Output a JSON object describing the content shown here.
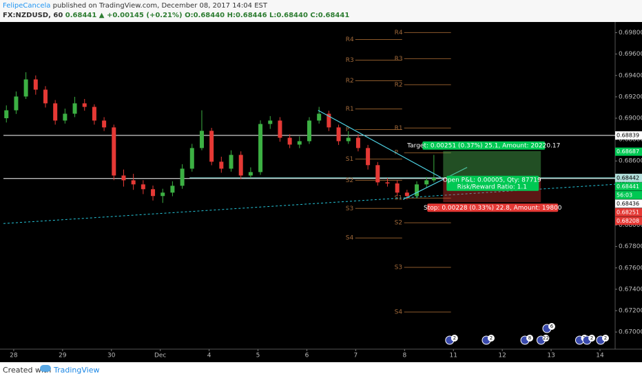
{
  "header": {
    "author": "FelipeCancela",
    "published": " published on TradingView.com, December 08, 2017 14:04 EST",
    "symbol": "FX:NZDUSD, 60",
    "last": "0.68441",
    "change": "▲ +0.00145 (+0.21%)",
    "ohlc": "O:0.68440 H:0.68446 L:0.68440 C:0.68441"
  },
  "chart_data": {
    "type": "candlestick",
    "up_color": "#3cb043",
    "down_color": "#e53935",
    "x": [
      -0.15,
      0.05,
      0.25,
      0.45,
      0.65,
      0.85,
      1.05,
      1.25,
      1.45,
      1.65,
      1.85,
      2.05,
      2.25,
      2.45,
      2.65,
      2.85,
      3.05,
      3.25,
      3.45,
      3.65,
      3.85,
      4.05,
      4.25,
      4.45,
      4.65,
      4.85,
      5.05,
      5.25,
      5.45,
      5.65,
      5.85,
      6.05,
      6.25,
      6.45,
      6.65,
      6.85,
      7.05,
      7.25,
      7.45,
      7.65,
      7.85,
      8.05,
      8.25,
      8.45,
      8.6
    ],
    "open": [
      0.69,
      0.69074,
      0.69203,
      0.69363,
      0.69267,
      0.69139,
      0.68978,
      0.69042,
      0.69139,
      0.69106,
      0.68978,
      0.68914,
      0.68464,
      0.68419,
      0.68381,
      0.68336,
      0.68272,
      0.68304,
      0.68368,
      0.68528,
      0.68721,
      0.68882,
      0.68593,
      0.68528,
      0.68657,
      0.68464,
      0.68496,
      0.68946,
      0.68978,
      0.68817,
      0.68753,
      0.68785,
      0.68978,
      0.69042,
      0.68914,
      0.68785,
      0.68817,
      0.68721,
      0.68561,
      0.684,
      0.6839,
      0.68304,
      0.68272,
      0.68381,
      0.68419
    ],
    "high": [
      0.6912,
      0.6925,
      0.6943,
      0.694,
      0.693,
      0.6917,
      0.6909,
      0.692,
      0.6918,
      0.6913,
      0.6901,
      0.6894,
      0.6852,
      0.6848,
      0.6842,
      0.6837,
      0.6834,
      0.6841,
      0.6857,
      0.6876,
      0.69074,
      0.6891,
      0.6864,
      0.687,
      0.6869,
      0.6854,
      0.6898,
      0.6902,
      0.6901,
      0.6885,
      0.6883,
      0.6901,
      0.69106,
      0.6907,
      0.6894,
      0.6888,
      0.6885,
      0.6875,
      0.6859,
      0.6844,
      0.6842,
      0.6833,
      0.6841,
      0.6845,
      0.68657
    ],
    "low": [
      0.6896,
      0.6904,
      0.6918,
      0.6922,
      0.691,
      0.6894,
      0.6895,
      0.6901,
      0.6907,
      0.6894,
      0.6888,
      0.6842,
      0.6836,
      0.6833,
      0.6829,
      0.6823,
      0.68208,
      0.6827,
      0.6834,
      0.685,
      0.687,
      0.6856,
      0.6849,
      0.685,
      0.6843,
      0.6844,
      0.6847,
      0.689,
      0.6878,
      0.6872,
      0.6872,
      0.6876,
      0.6895,
      0.6888,
      0.6875,
      0.6876,
      0.6869,
      0.6852,
      0.6837,
      0.6836,
      0.6827,
      0.6824,
      0.6825,
      0.6835,
      0.684
    ],
    "close": [
      0.69074,
      0.69203,
      0.69363,
      0.69267,
      0.69139,
      0.68978,
      0.69042,
      0.69139,
      0.69106,
      0.68978,
      0.68914,
      0.68464,
      0.68419,
      0.68381,
      0.68336,
      0.68272,
      0.68304,
      0.68368,
      0.68528,
      0.68721,
      0.68882,
      0.68593,
      0.68528,
      0.68657,
      0.68464,
      0.68496,
      0.68946,
      0.68978,
      0.68817,
      0.68753,
      0.68785,
      0.68978,
      0.69042,
      0.68914,
      0.68785,
      0.68817,
      0.68721,
      0.68561,
      0.684,
      0.6839,
      0.68304,
      0.68272,
      0.68381,
      0.68419,
      0.68441
    ],
    "xlim": [
      -0.21,
      12.31
    ],
    "xticks": [
      {
        "value": 0,
        "label": "28"
      },
      {
        "value": 1,
        "label": "29"
      },
      {
        "value": 2,
        "label": "30"
      },
      {
        "value": 3,
        "label": "Dec"
      },
      {
        "value": 4,
        "label": "4"
      },
      {
        "value": 5,
        "label": "5"
      },
      {
        "value": 6,
        "label": "6"
      },
      {
        "value": 7,
        "label": "7"
      },
      {
        "value": 8,
        "label": "8"
      },
      {
        "value": 9,
        "label": "11"
      },
      {
        "value": 10,
        "label": "12"
      },
      {
        "value": 11,
        "label": "13"
      },
      {
        "value": 12,
        "label": "14"
      }
    ],
    "ylim": [
      0.6684,
      0.699
    ],
    "yticks": [
      {
        "value": 0.67,
        "label": "0.67000"
      },
      {
        "value": 0.672,
        "label": "0.67200"
      },
      {
        "value": 0.674,
        "label": "0.67400"
      },
      {
        "value": 0.676,
        "label": "0.67600"
      },
      {
        "value": 0.678,
        "label": "0.67800"
      },
      {
        "value": 0.68,
        "label": "0.68000"
      },
      {
        "value": 0.682,
        "label": "0.68200"
      },
      {
        "value": 0.684,
        "label": "0.68400"
      },
      {
        "value": 0.686,
        "label": "0.68600"
      },
      {
        "value": 0.688,
        "label": "0.68800"
      },
      {
        "value": 0.69,
        "label": "0.69000"
      },
      {
        "value": 0.692,
        "label": "0.69200"
      },
      {
        "value": 0.694,
        "label": "0.69400"
      },
      {
        "value": 0.696,
        "label": "0.69600"
      },
      {
        "value": 0.698,
        "label": "0.69800"
      }
    ],
    "h_lines": [
      {
        "value": 0.68839,
        "color": "#ffffff"
      },
      {
        "value": 0.68436,
        "color": "#ffffff"
      },
      {
        "value": 0.68442,
        "color": "#7fd6d0",
        "from": 3.6
      }
    ],
    "right_labels": [
      {
        "value": 0.68839,
        "bg": "#ffffff",
        "fg": "#000000"
      },
      {
        "value": 0.68687,
        "bg": "#00c853",
        "fg": "#ffffff"
      },
      {
        "value": 0.68442,
        "bg": "#b2dfdb",
        "fg": "#000000"
      },
      {
        "value": 0.68441,
        "bg": "#00c853",
        "fg": "#ffffff"
      },
      {
        "text": "56:03",
        "bg": "#00c853",
        "fg": "#ffffff"
      },
      {
        "value": 0.68436,
        "bg": "#ffffff",
        "fg": "#000000"
      },
      {
        "value": 0.68251,
        "bg": "#e53935",
        "fg": "#ffffff"
      },
      {
        "value": 0.68208,
        "bg": "#e53935",
        "fg": "#ffffff"
      }
    ],
    "pivots": [
      {
        "x": [
          6.85,
          7.95
        ],
        "labels": [
          "R4",
          "R3",
          "R2",
          "R1",
          "P",
          "S1",
          "S2",
          "S3",
          "S4"
        ],
        "levels": [
          0.69736,
          0.69543,
          0.6935,
          0.69087,
          0.68894,
          0.68618,
          0.68419,
          0.68156,
          0.6788
        ]
      },
      {
        "x": [
          7.85,
          8.95
        ],
        "labels": [
          "R4",
          "R3",
          "R2",
          "R1",
          "P",
          "S1",
          "S2",
          "S3",
          "S4"
        ],
        "levels": [
          0.69801,
          0.69557,
          0.69313,
          0.68908,
          0.68677,
          0.68253,
          0.68022,
          0.67605,
          0.67187
        ]
      }
    ],
    "trendline": {
      "x": [
        -0.21,
        12.31
      ],
      "y": [
        0.68015,
        0.68382
      ],
      "color": "#26c6da"
    },
    "drawings": [
      {
        "x": [
          6.23,
          8.74
        ],
        "y": [
          0.69074,
          0.68447
        ]
      },
      {
        "x": [
          7.97,
          9.28
        ],
        "y": [
          0.6824,
          0.6854
        ]
      }
    ],
    "position": {
      "x": [
        8.79,
        10.79
      ],
      "entry": 0.68442,
      "target": 0.68693,
      "stop": 0.68214,
      "target_text": "Target: 0.00251 (0.37%) 25.1, Amount: 20220.17",
      "pnl_text": "Open P&L: 0.00005, Qty: 87719",
      "rr_text": "Risk/Reward Ratio: 1.1",
      "stop_text": "Stop: 0.00228 (0.33%) 22.8, Amount: 19800"
    },
    "events": [
      {
        "x": 8.98,
        "label": "2"
      },
      {
        "x": 9.73,
        "label": "2"
      },
      {
        "x": 10.52,
        "label": "8"
      },
      {
        "x": 10.85,
        "label": "22"
      },
      {
        "x": 10.97,
        "label": "6",
        "row": 1
      },
      {
        "x": 11.64,
        "label": "5"
      },
      {
        "x": 11.79,
        "label": "2"
      },
      {
        "x": 12.07,
        "label": "2"
      }
    ]
  },
  "footer": {
    "created": "Created with",
    "brand": "TradingView"
  }
}
